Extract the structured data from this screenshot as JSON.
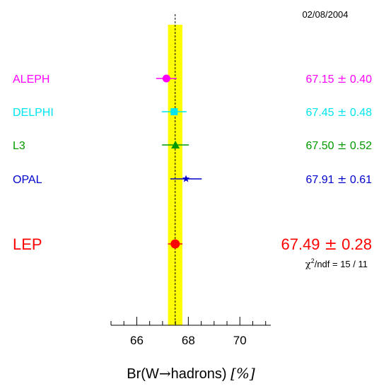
{
  "date": "02/08/2004",
  "chi2": {
    "symbol": "χ",
    "exponent": "2",
    "text": "/ndf = 15 / 11"
  },
  "xlabel": {
    "prefix": "Br(W",
    "arrow": "→",
    "suffix": "hadrons) ",
    "unit": "[%]"
  },
  "chart_data": {
    "type": "scatter",
    "title": "",
    "xlabel": "Br(W→hadrons) [%]",
    "xlim": [
      65.0,
      71.2
    ],
    "x_ticks": [
      66,
      68,
      70
    ],
    "band": {
      "center": 67.49,
      "error": 0.28,
      "color": "#ffff00"
    },
    "series": [
      {
        "name": "ALEPH",
        "value": 67.15,
        "error": 0.4,
        "value_label": "67.15",
        "error_label": "0.40",
        "color": "#ff00ff",
        "marker": "circle"
      },
      {
        "name": "DELPHI",
        "value": 67.45,
        "error": 0.48,
        "value_label": "67.45",
        "error_label": "0.48",
        "color": "#00e5ee",
        "marker": "square"
      },
      {
        "name": "L3",
        "value": 67.5,
        "error": 0.52,
        "value_label": "67.50",
        "error_label": "0.52",
        "color": "#009900",
        "marker": "triangle"
      },
      {
        "name": "OPAL",
        "value": 67.91,
        "error": 0.61,
        "value_label": "67.91",
        "error_label": "0.61",
        "color": "#0000cc",
        "marker": "star"
      },
      {
        "name": "LEP",
        "value": 67.49,
        "error": 0.28,
        "value_label": "67.49",
        "error_label": "0.28",
        "color": "#ff0000",
        "marker": "circle"
      }
    ]
  }
}
